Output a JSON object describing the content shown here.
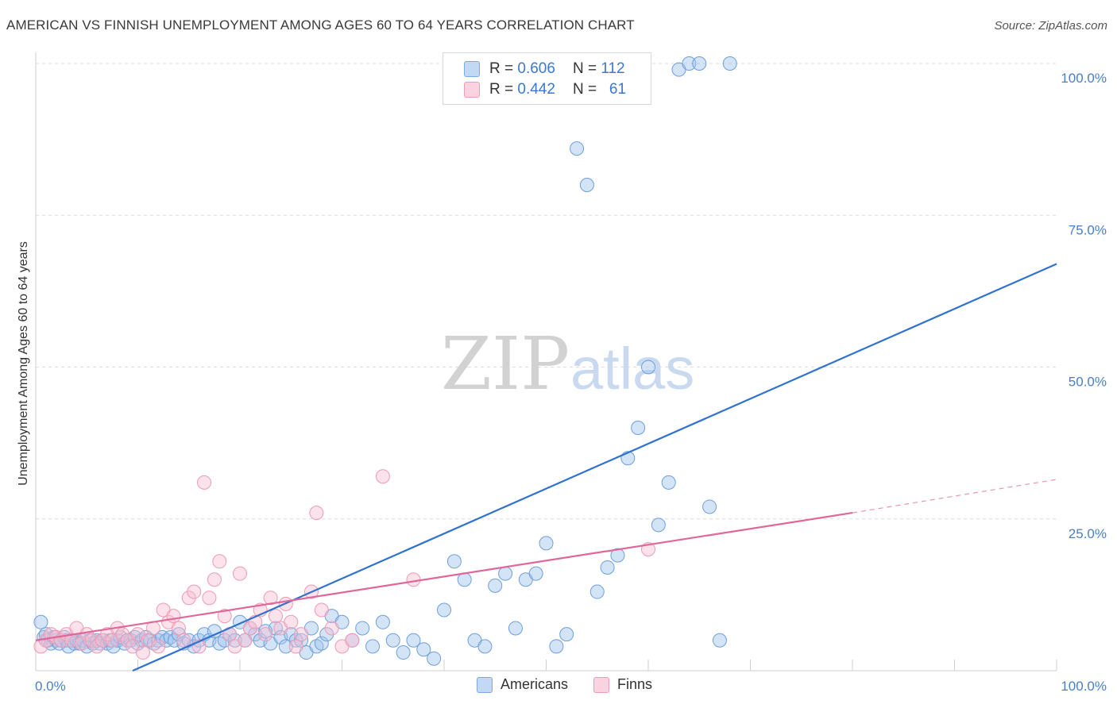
{
  "title": "AMERICAN VS FINNISH UNEMPLOYMENT AMONG AGES 60 TO 64 YEARS CORRELATION CHART",
  "source": "Source: ZipAtlas.com",
  "watermark": {
    "zip": "ZIP",
    "atlas": "atlas"
  },
  "legend": {
    "americans": {
      "r_label": "R =",
      "r": "0.606",
      "n_label": "N =",
      "n": "112",
      "color": "#7aaae6"
    },
    "finns": {
      "r_label": "R =",
      "r": "0.442",
      "n_label": "N =",
      "n": "61",
      "color": "#f29bb5"
    }
  },
  "bottom_legend": {
    "americans": "Americans",
    "finns": "Finns"
  },
  "chart_data": {
    "type": "scatter",
    "title": "AMERICAN VS FINNISH UNEMPLOYMENT AMONG AGES 60 TO 64 YEARS CORRELATION CHART",
    "xlabel": "",
    "ylabel": "Unemployment Among Ages 60 to 64 years",
    "xlim": [
      0,
      100
    ],
    "ylim": [
      0,
      100
    ],
    "x_tick_labels": [
      "0.0%",
      "100.0%"
    ],
    "y_ticks": [
      25,
      50,
      75,
      100
    ],
    "y_tick_labels": [
      "25.0%",
      "50.0%",
      "75.0%",
      "100.0%"
    ],
    "grid": true,
    "legend_position": "top-center",
    "series": [
      {
        "name": "Americans",
        "color": "#7aaae6",
        "line_color": "#2f72d0",
        "trend": {
          "x": [
            9.5,
            100
          ],
          "y": [
            0,
            67
          ]
        },
        "points": [
          [
            0.5,
            8
          ],
          [
            0.8,
            5.5
          ],
          [
            1,
            6
          ],
          [
            1.2,
            5
          ],
          [
            1.5,
            4.5
          ],
          [
            1.8,
            5.5
          ],
          [
            2,
            5
          ],
          [
            2.3,
            4.5
          ],
          [
            2.5,
            5
          ],
          [
            2.8,
            5.5
          ],
          [
            3,
            5
          ],
          [
            3.2,
            4
          ],
          [
            3.5,
            5
          ],
          [
            3.8,
            4.5
          ],
          [
            4,
            5
          ],
          [
            4.3,
            4.5
          ],
          [
            4.6,
            5
          ],
          [
            5,
            4
          ],
          [
            5.3,
            5
          ],
          [
            5.6,
            4.5
          ],
          [
            6,
            5
          ],
          [
            6.3,
            4.5
          ],
          [
            6.6,
            5
          ],
          [
            7,
            4.5
          ],
          [
            7.3,
            5
          ],
          [
            7.6,
            4
          ],
          [
            8,
            5
          ],
          [
            8.3,
            5.5
          ],
          [
            8.7,
            4.5
          ],
          [
            9,
            5
          ],
          [
            9.3,
            5
          ],
          [
            9.7,
            5.5
          ],
          [
            10,
            4.5
          ],
          [
            10.4,
            5
          ],
          [
            10.8,
            5.5
          ],
          [
            11.2,
            5
          ],
          [
            11.6,
            4.5
          ],
          [
            12,
            5
          ],
          [
            12.4,
            5.5
          ],
          [
            12.8,
            5
          ],
          [
            13.2,
            5.5
          ],
          [
            13.6,
            5
          ],
          [
            14,
            6
          ],
          [
            14.5,
            4.5
          ],
          [
            15,
            5
          ],
          [
            15.5,
            4
          ],
          [
            16,
            5
          ],
          [
            16.5,
            6
          ],
          [
            17,
            5
          ],
          [
            17.5,
            6.5
          ],
          [
            18,
            4.5
          ],
          [
            18.5,
            5
          ],
          [
            19,
            6
          ],
          [
            19.5,
            5
          ],
          [
            20,
            8
          ],
          [
            20.5,
            5
          ],
          [
            21,
            7
          ],
          [
            21.5,
            6
          ],
          [
            22,
            5
          ],
          [
            22.5,
            6.5
          ],
          [
            23,
            4.5
          ],
          [
            23.5,
            7
          ],
          [
            24,
            5.5
          ],
          [
            24.5,
            4
          ],
          [
            25,
            6
          ],
          [
            25.5,
            5
          ],
          [
            26,
            5
          ],
          [
            26.5,
            3
          ],
          [
            27,
            7
          ],
          [
            27.5,
            4
          ],
          [
            28,
            4.5
          ],
          [
            28.5,
            6
          ],
          [
            29,
            9
          ],
          [
            30,
            8
          ],
          [
            31,
            5
          ],
          [
            32,
            7
          ],
          [
            33,
            4
          ],
          [
            34,
            8
          ],
          [
            35,
            5
          ],
          [
            36,
            3
          ],
          [
            37,
            5
          ],
          [
            38,
            3.5
          ],
          [
            39,
            2
          ],
          [
            40,
            10
          ],
          [
            41,
            18
          ],
          [
            42,
            15
          ],
          [
            43,
            5
          ],
          [
            44,
            4
          ],
          [
            45,
            14
          ],
          [
            46,
            16
          ],
          [
            47,
            7
          ],
          [
            48,
            15
          ],
          [
            49,
            16
          ],
          [
            50,
            21
          ],
          [
            51,
            4
          ],
          [
            52,
            6
          ],
          [
            53,
            86
          ],
          [
            54,
            80
          ],
          [
            55,
            13
          ],
          [
            56,
            17
          ],
          [
            57,
            19
          ],
          [
            58,
            35
          ],
          [
            59,
            40
          ],
          [
            60,
            50
          ],
          [
            61,
            24
          ],
          [
            62,
            31
          ],
          [
            63,
            99
          ],
          [
            64,
            100
          ],
          [
            65,
            100
          ],
          [
            66,
            27
          ],
          [
            67,
            5
          ],
          [
            68,
            100
          ]
        ]
      },
      {
        "name": "Finns",
        "color": "#f29bb5",
        "line_color": "#e0679a",
        "trend": {
          "x": [
            0,
            80
          ],
          "y": [
            5,
            26
          ]
        },
        "trend_ext": {
          "x": [
            80,
            100
          ],
          "y": [
            26,
            31.5
          ]
        },
        "points": [
          [
            0.5,
            4
          ],
          [
            1,
            5
          ],
          [
            1.5,
            6
          ],
          [
            2,
            5.5
          ],
          [
            2.5,
            5
          ],
          [
            3,
            6
          ],
          [
            3.5,
            5
          ],
          [
            4,
            7
          ],
          [
            4.5,
            4.5
          ],
          [
            5,
            6
          ],
          [
            5.5,
            5
          ],
          [
            6,
            4
          ],
          [
            6.5,
            5
          ],
          [
            7,
            6
          ],
          [
            7.5,
            5
          ],
          [
            8,
            7
          ],
          [
            8.5,
            6
          ],
          [
            9,
            5
          ],
          [
            9.5,
            4
          ],
          [
            10,
            6
          ],
          [
            10.5,
            3
          ],
          [
            11,
            5
          ],
          [
            11.5,
            7
          ],
          [
            12,
            4
          ],
          [
            12.5,
            10
          ],
          [
            13,
            8
          ],
          [
            13.5,
            9
          ],
          [
            14,
            7
          ],
          [
            14.5,
            5
          ],
          [
            15,
            12
          ],
          [
            15.5,
            13
          ],
          [
            16,
            4
          ],
          [
            16.5,
            31
          ],
          [
            17,
            12
          ],
          [
            17.5,
            15
          ],
          [
            18,
            18
          ],
          [
            18.5,
            9
          ],
          [
            19,
            6
          ],
          [
            19.5,
            4
          ],
          [
            20,
            16
          ],
          [
            20.5,
            5
          ],
          [
            21,
            7
          ],
          [
            21.5,
            8
          ],
          [
            22,
            10
          ],
          [
            22.5,
            6
          ],
          [
            23,
            12
          ],
          [
            23.5,
            9
          ],
          [
            24,
            7
          ],
          [
            24.5,
            11
          ],
          [
            25,
            8
          ],
          [
            25.5,
            4
          ],
          [
            26,
            6
          ],
          [
            27,
            13
          ],
          [
            27.5,
            26
          ],
          [
            28,
            10
          ],
          [
            29,
            7
          ],
          [
            30,
            4
          ],
          [
            31,
            5
          ],
          [
            34,
            32
          ],
          [
            37,
            15
          ],
          [
            60,
            20
          ]
        ]
      }
    ]
  }
}
